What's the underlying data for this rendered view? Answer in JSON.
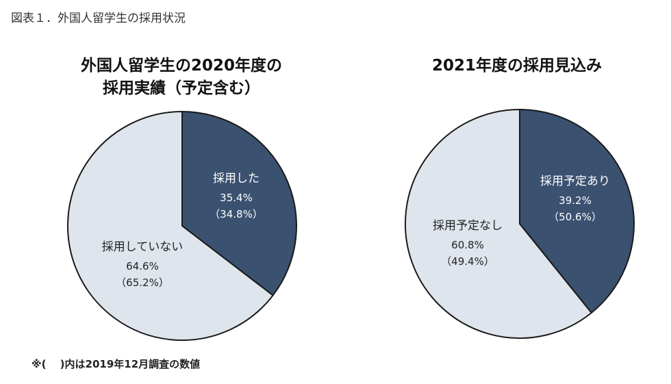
{
  "figure_caption": "図表１．外国人留学生の採用状況",
  "footnote": "※(　 )内は2019年12月調査の数値",
  "colors": {
    "dark_slice": "#3b5170",
    "light_slice": "#dfe5ec",
    "outline": "#1a1a1a"
  },
  "chart_data": [
    {
      "type": "pie",
      "title_lines": [
        "外国人留学生の2020年度の",
        "採用実績（予定含む）"
      ],
      "slices": [
        {
          "label": "採用した",
          "value": 35.4,
          "value_label": "35.4%",
          "previous_label": "（34.8%）",
          "previous_value": 34.8,
          "color": "dark"
        },
        {
          "label": "採用していない",
          "value": 64.6,
          "value_label": "64.6%",
          "previous_label": "（65.2%）",
          "previous_value": 65.2,
          "color": "light"
        }
      ]
    },
    {
      "type": "pie",
      "title_lines": [
        "2021年度の採用見込み"
      ],
      "slices": [
        {
          "label": "採用予定あり",
          "value": 39.2,
          "value_label": "39.2%",
          "previous_label": "（50.6%）",
          "previous_value": 50.6,
          "color": "dark"
        },
        {
          "label": "採用予定なし",
          "value": 60.8,
          "value_label": "60.8%",
          "previous_label": "（49.4%）",
          "previous_value": 49.4,
          "color": "light"
        }
      ]
    }
  ]
}
